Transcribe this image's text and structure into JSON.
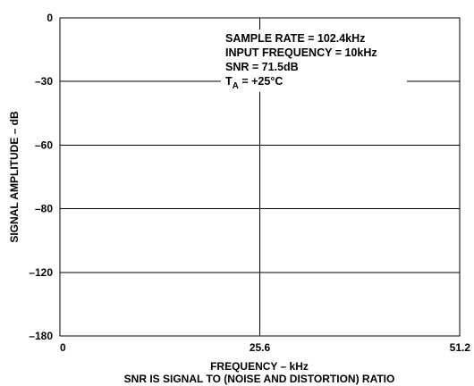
{
  "chart_data": {
    "type": "line",
    "title": "",
    "xlabel": "FREQUENCY – kHz",
    "ylabel": "SIGNAL AMPLITUDE – dB",
    "footnote": "SNR IS SIGNAL TO (NOISE AND DISTORTION) RATIO",
    "xlim": [
      0,
      51.2
    ],
    "ylim": [
      -180,
      0
    ],
    "x_ticks": [
      0,
      25.6,
      51.2
    ],
    "x_tick_labels": [
      "0",
      "25.6",
      "51.2"
    ],
    "y_ticks": [
      0,
      -30,
      -60,
      -80,
      -120,
      -180
    ],
    "y_tick_labels": [
      "0",
      "–30",
      "–60",
      "–80",
      "–120",
      "–180"
    ],
    "grid": true,
    "series": [],
    "annotations": {
      "line1": "SAMPLE RATE = 102.4kHz",
      "line2": "INPUT FREQUENCY = 10kHz",
      "line3": "SNR = 71.5dB",
      "line4_main": "T",
      "line4_sub": "A",
      "line4_rest": " = +25°C"
    }
  }
}
